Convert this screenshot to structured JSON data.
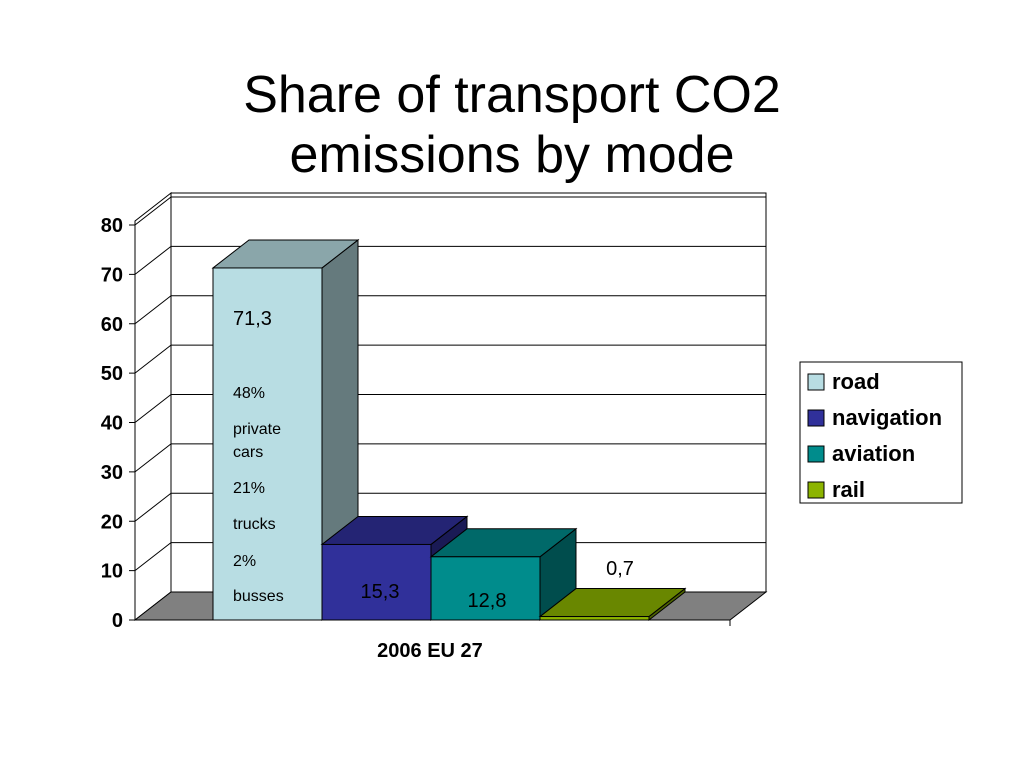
{
  "title": {
    "line1": "Share of transport CO2",
    "line2": "emissions by mode"
  },
  "chart_data": {
    "type": "bar",
    "categories": [
      "2006 EU 27"
    ],
    "xlabel": "",
    "ylabel": "",
    "ylim": [
      0,
      80
    ],
    "yticks": [
      0,
      10,
      20,
      30,
      40,
      50,
      60,
      70,
      80
    ],
    "grid": true,
    "legend_position": "right",
    "series": [
      {
        "name": "road",
        "values": [
          71.3
        ],
        "label": "71,3",
        "color": "#b8dde3"
      },
      {
        "name": "navigation",
        "values": [
          15.3
        ],
        "label": "15,3",
        "color": "#30309a"
      },
      {
        "name": "aviation",
        "values": [
          12.8
        ],
        "label": "12,8",
        "color": "#008c8c"
      },
      {
        "name": "rail",
        "values": [
          0.7
        ],
        "label": "0,7",
        "color": "#8cb400"
      }
    ],
    "annotations": [
      "48%",
      "private",
      "cars",
      "21%",
      "trucks",
      "2%",
      "busses"
    ]
  }
}
